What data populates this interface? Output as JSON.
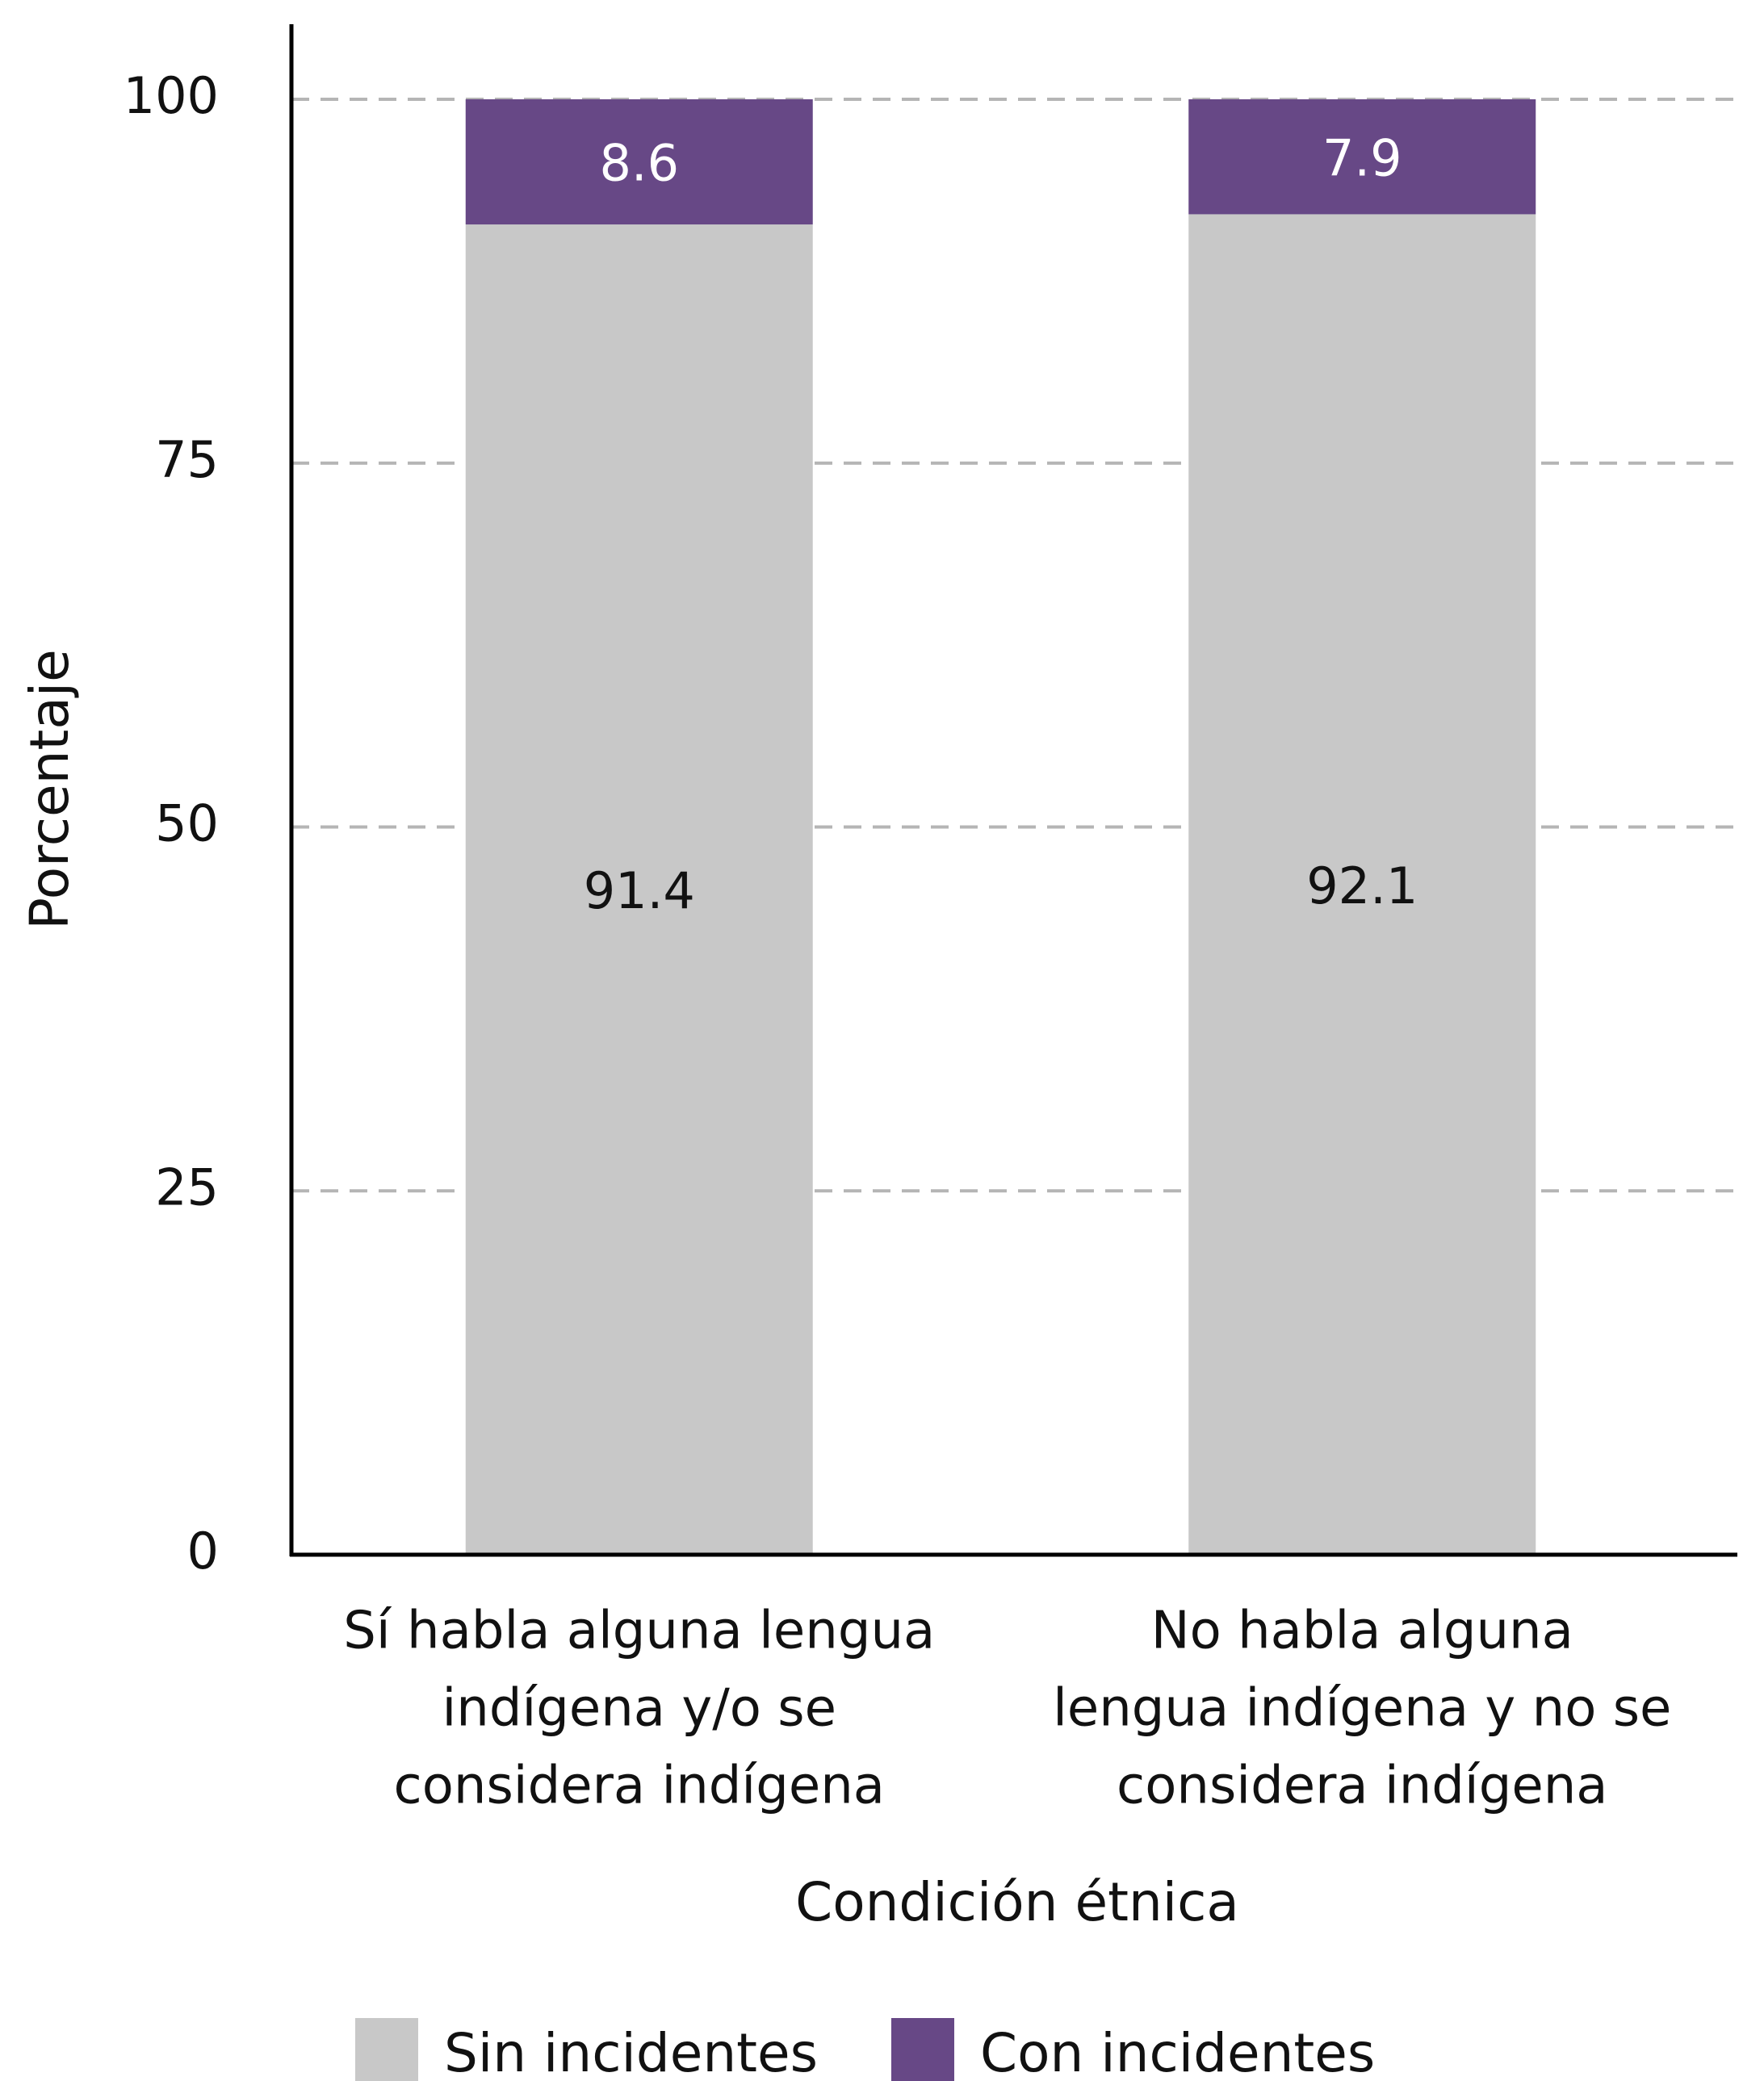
{
  "chart_data": {
    "type": "stacked_bar",
    "categories": [
      [
        "Sí habla alguna lengua",
        "indígena y/o se",
        "considera indígena"
      ],
      [
        "No habla alguna",
        "lengua indígena y no se",
        "considera indígena"
      ]
    ],
    "series": [
      {
        "name": "Sin incidentes",
        "color": "#c8c8c8",
        "values": [
          91.4,
          92.1
        ]
      },
      {
        "name": "Con incidentes",
        "color": "#674886",
        "values": [
          8.6,
          7.9
        ]
      }
    ],
    "x_label": "Condición étnica",
    "y_label": "Porcentaje",
    "ylim": [
      0,
      100
    ],
    "yticks": [
      0,
      25,
      50,
      75,
      100
    ],
    "grid": true,
    "legend": "bottom"
  }
}
